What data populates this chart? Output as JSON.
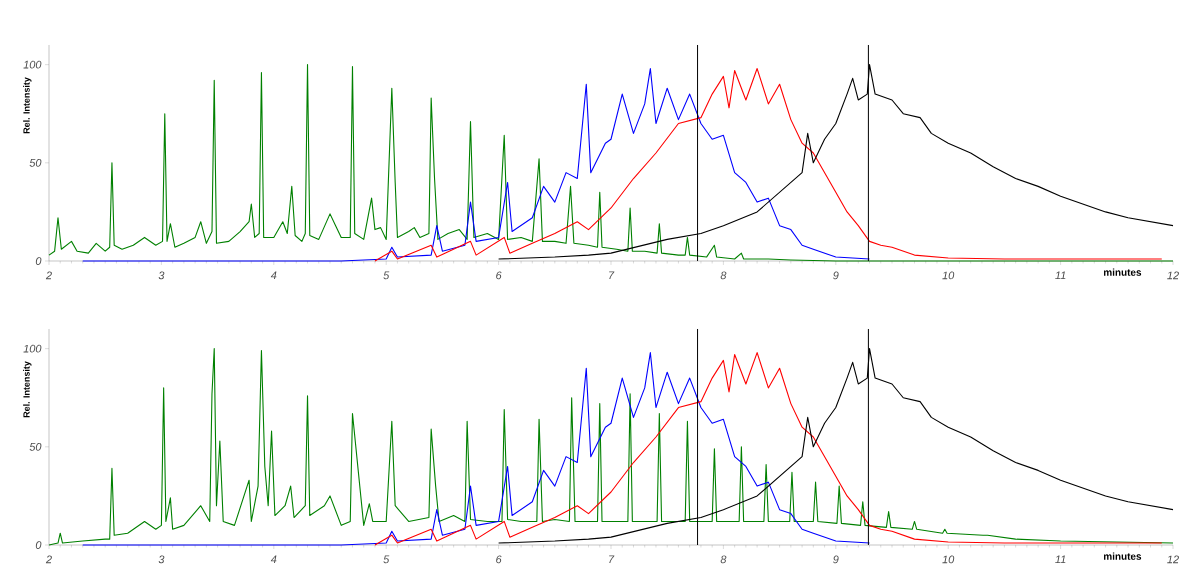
{
  "chart_data": [
    {
      "type": "line",
      "xlabel": "minutes",
      "ylabel": "Rel. Intensity",
      "xlim": [
        2,
        12
      ],
      "ylim": [
        0,
        110
      ],
      "xticks": [
        2,
        3,
        4,
        5,
        6,
        7,
        8,
        9,
        10,
        11,
        12
      ],
      "yticks": [
        0,
        50,
        100
      ],
      "ref_lines": [
        {
          "axis": "x",
          "value": 7.77,
          "color": "#000000"
        },
        {
          "axis": "x",
          "value": 9.29,
          "color": "#000000"
        }
      ],
      "series": [
        {
          "color": "#008000",
          "x": [
            2.0,
            2.05,
            2.08,
            2.11,
            2.2,
            2.25,
            2.35,
            2.42,
            2.5,
            2.54,
            2.56,
            2.58,
            2.65,
            2.75,
            2.85,
            2.95,
            3.01,
            3.03,
            3.05,
            3.08,
            3.12,
            3.2,
            3.3,
            3.35,
            3.4,
            3.45,
            3.47,
            3.49,
            3.6,
            3.7,
            3.78,
            3.8,
            3.83,
            3.87,
            3.89,
            3.91,
            4.0,
            4.08,
            4.12,
            4.16,
            4.19,
            4.25,
            4.28,
            4.3,
            4.32,
            4.4,
            4.5,
            4.55,
            4.6,
            4.68,
            4.7,
            4.72,
            4.8,
            4.87,
            4.9,
            4.95,
            5.0,
            5.05,
            5.08,
            5.1,
            5.2,
            5.25,
            5.3,
            5.38,
            5.4,
            5.43,
            5.46,
            5.55,
            5.65,
            5.72,
            5.75,
            5.78,
            5.9,
            6.0,
            6.05,
            6.08,
            6.2,
            6.3,
            6.36,
            6.39,
            6.5,
            6.6,
            6.64,
            6.67,
            6.8,
            6.88,
            6.9,
            6.92,
            7.05,
            7.15,
            7.17,
            7.19,
            7.3,
            7.41,
            7.43,
            7.45,
            7.6,
            7.66,
            7.68,
            7.7,
            7.85,
            7.92,
            7.94,
            8.1,
            8.16,
            8.18,
            8.4,
            8.6,
            9.0,
            10.0,
            12.0
          ],
          "values": [
            3,
            5,
            22,
            6,
            10,
            5,
            4,
            9,
            5,
            7,
            50,
            8,
            6,
            8,
            12,
            8,
            10,
            75,
            10,
            19,
            7,
            9,
            12,
            20,
            9,
            15,
            92,
            9,
            10,
            15,
            20,
            29,
            12,
            14,
            96,
            12,
            12,
            20,
            14,
            38,
            13,
            10,
            14,
            100,
            13,
            11,
            24,
            18,
            12,
            12,
            99,
            14,
            11,
            32,
            16,
            17,
            11,
            88,
            40,
            12,
            15,
            17,
            12,
            14,
            83,
            42,
            11,
            14,
            16,
            11,
            71,
            12,
            14,
            11,
            64,
            11,
            12,
            10,
            52,
            10,
            10,
            9,
            38,
            9,
            8,
            7,
            35,
            7,
            6,
            5,
            27,
            5,
            5,
            4,
            19,
            4,
            3,
            3,
            12,
            3,
            2,
            8,
            2,
            1,
            4,
            1,
            1,
            0.5,
            0,
            0,
            0
          ]
        },
        {
          "color": "#0000ff",
          "x": [
            2.3,
            4.6,
            5.0,
            5.05,
            5.1,
            5.4,
            5.45,
            5.5,
            5.7,
            5.75,
            5.8,
            6.0,
            6.08,
            6.12,
            6.3,
            6.4,
            6.5,
            6.6,
            6.7,
            6.78,
            6.82,
            6.95,
            7.0,
            7.1,
            7.2,
            7.3,
            7.35,
            7.4,
            7.5,
            7.6,
            7.7,
            7.8,
            7.9,
            8.0,
            8.1,
            8.2,
            8.3,
            8.4,
            8.5,
            8.6,
            8.7,
            8.8,
            9.0,
            9.3
          ],
          "values": [
            0,
            0,
            1,
            7,
            2,
            3,
            18,
            5,
            8,
            30,
            10,
            12,
            40,
            15,
            22,
            38,
            30,
            45,
            42,
            90,
            45,
            60,
            62,
            85,
            65,
            80,
            98,
            70,
            88,
            72,
            85,
            70,
            62,
            64,
            45,
            40,
            30,
            32,
            18,
            16,
            8,
            6,
            2,
            1
          ]
        },
        {
          "color": "#ff0000",
          "x": [
            4.9,
            5.05,
            5.1,
            5.4,
            5.45,
            5.75,
            5.8,
            6.05,
            6.1,
            6.3,
            6.5,
            6.7,
            6.8,
            7.0,
            7.2,
            7.4,
            7.6,
            7.8,
            7.9,
            8.0,
            8.05,
            8.1,
            8.2,
            8.3,
            8.4,
            8.5,
            8.6,
            8.7,
            8.8,
            8.9,
            9.0,
            9.1,
            9.2,
            9.3,
            9.4,
            9.5,
            9.7,
            10.0,
            10.5,
            11.9
          ],
          "values": [
            0,
            5,
            1,
            8,
            2,
            10,
            3,
            12,
            4,
            9,
            14,
            20,
            16,
            27,
            42,
            55,
            70,
            73,
            85,
            94,
            78,
            97,
            82,
            98,
            80,
            90,
            72,
            60,
            55,
            45,
            35,
            25,
            18,
            10,
            8,
            7,
            3,
            1.5,
            1,
            1
          ]
        },
        {
          "color": "#000000",
          "x": [
            6.0,
            6.5,
            6.8,
            7.0,
            7.5,
            7.8,
            8.0,
            8.3,
            8.5,
            8.7,
            8.75,
            8.8,
            8.9,
            9.0,
            9.1,
            9.15,
            9.2,
            9.28,
            9.3,
            9.35,
            9.5,
            9.6,
            9.75,
            9.85,
            10.0,
            10.2,
            10.4,
            10.6,
            10.8,
            11.0,
            11.2,
            11.4,
            11.6,
            11.8,
            12.0
          ],
          "values": [
            1,
            2,
            3,
            4,
            11,
            14,
            18,
            25,
            35,
            45,
            65,
            50,
            62,
            70,
            85,
            93,
            82,
            85,
            100,
            85,
            82,
            75,
            73,
            65,
            60,
            55,
            48,
            42,
            38,
            33,
            29,
            25,
            22,
            20,
            18
          ]
        }
      ]
    },
    {
      "type": "line",
      "xlabel": "minutes",
      "ylabel": "Rel. Intensity",
      "xlim": [
        2,
        12
      ],
      "ylim": [
        0,
        110
      ],
      "xticks": [
        2,
        3,
        4,
        5,
        6,
        7,
        8,
        9,
        10,
        11,
        12
      ],
      "yticks": [
        0,
        50,
        100
      ],
      "ref_lines": [
        {
          "axis": "x",
          "value": 7.77,
          "color": "#000000"
        },
        {
          "axis": "x",
          "value": 9.29,
          "color": "#000000"
        }
      ],
      "series": [
        {
          "color": "#008000",
          "x": [
            2.0,
            2.08,
            2.1,
            2.12,
            2.3,
            2.5,
            2.54,
            2.56,
            2.58,
            2.7,
            2.85,
            2.95,
            3.0,
            3.02,
            3.04,
            3.08,
            3.1,
            3.2,
            3.35,
            3.43,
            3.45,
            3.47,
            3.49,
            3.52,
            3.55,
            3.65,
            3.78,
            3.8,
            3.86,
            3.89,
            3.92,
            3.95,
            3.98,
            4.01,
            4.1,
            4.15,
            4.18,
            4.28,
            4.3,
            4.32,
            4.45,
            4.5,
            4.6,
            4.68,
            4.7,
            4.8,
            4.85,
            4.88,
            5.0,
            5.05,
            5.08,
            5.2,
            5.38,
            5.4,
            5.44,
            5.47,
            5.6,
            5.7,
            5.72,
            5.75,
            5.9,
            6.03,
            6.05,
            6.08,
            6.2,
            6.34,
            6.36,
            6.39,
            6.5,
            6.63,
            6.65,
            6.68,
            6.88,
            6.9,
            6.92,
            7.15,
            7.17,
            7.19,
            7.41,
            7.43,
            7.45,
            7.66,
            7.68,
            7.7,
            7.9,
            7.92,
            7.94,
            8.14,
            8.16,
            8.18,
            8.36,
            8.38,
            8.4,
            8.59,
            8.61,
            8.63,
            8.8,
            8.82,
            8.84,
            9.01,
            9.03,
            9.05,
            9.22,
            9.24,
            9.26,
            9.45,
            9.47,
            9.49,
            9.68,
            9.7,
            9.72,
            9.95,
            9.97,
            9.99,
            10.31,
            10.33,
            10.35,
            10.6,
            11.0,
            11.5,
            12.0
          ],
          "values": [
            0,
            1,
            6,
            1,
            2,
            3,
            3,
            39,
            5,
            6,
            12,
            8,
            10,
            80,
            12,
            24,
            8,
            10,
            20,
            12,
            77,
            100,
            20,
            53,
            12,
            10,
            33,
            12,
            30,
            99,
            40,
            20,
            58,
            15,
            20,
            30,
            14,
            20,
            76,
            15,
            20,
            25,
            10,
            12,
            67,
            10,
            21,
            12,
            12,
            63,
            20,
            12,
            14,
            59,
            30,
            12,
            15,
            12,
            63,
            13,
            12,
            12,
            69,
            13,
            12,
            12,
            64,
            12,
            13,
            12,
            75,
            12,
            12,
            72,
            12,
            12,
            77,
            12,
            12,
            67,
            12,
            12,
            63,
            12,
            12,
            49,
            12,
            12,
            50,
            12,
            12,
            41,
            12,
            12,
            37,
            12,
            12,
            32,
            12,
            11,
            30,
            11,
            10,
            22,
            10,
            9,
            17,
            9,
            8,
            12,
            8,
            6,
            8,
            6,
            5,
            5,
            5,
            3,
            2,
            1.5,
            1
          ]
        },
        {
          "color": "#0000ff",
          "x": [
            2.3,
            4.6,
            5.0,
            5.05,
            5.1,
            5.4,
            5.45,
            5.5,
            5.7,
            5.75,
            5.8,
            6.0,
            6.08,
            6.12,
            6.3,
            6.4,
            6.5,
            6.6,
            6.7,
            6.78,
            6.82,
            6.95,
            7.0,
            7.1,
            7.2,
            7.3,
            7.35,
            7.4,
            7.5,
            7.6,
            7.7,
            7.8,
            7.9,
            8.0,
            8.1,
            8.2,
            8.3,
            8.4,
            8.5,
            8.6,
            8.7,
            8.8,
            9.0,
            9.3
          ],
          "values": [
            0,
            0,
            1,
            7,
            2,
            3,
            18,
            5,
            8,
            30,
            10,
            12,
            40,
            15,
            22,
            38,
            30,
            45,
            42,
            90,
            45,
            60,
            62,
            85,
            65,
            80,
            98,
            70,
            88,
            72,
            85,
            70,
            62,
            64,
            45,
            40,
            30,
            32,
            18,
            16,
            8,
            6,
            2,
            1
          ]
        },
        {
          "color": "#ff0000",
          "x": [
            4.9,
            5.05,
            5.1,
            5.4,
            5.45,
            5.75,
            5.8,
            6.05,
            6.1,
            6.3,
            6.5,
            6.7,
            6.8,
            7.0,
            7.2,
            7.4,
            7.6,
            7.8,
            7.9,
            8.0,
            8.05,
            8.1,
            8.2,
            8.3,
            8.4,
            8.5,
            8.6,
            8.7,
            8.8,
            8.9,
            9.0,
            9.1,
            9.2,
            9.3,
            9.4,
            9.5,
            9.7,
            10.0,
            10.5,
            11.9
          ],
          "values": [
            0,
            5,
            1,
            8,
            2,
            10,
            3,
            12,
            4,
            9,
            14,
            20,
            16,
            27,
            42,
            55,
            70,
            73,
            85,
            94,
            78,
            97,
            82,
            98,
            80,
            90,
            72,
            60,
            55,
            45,
            35,
            25,
            18,
            10,
            8,
            7,
            3,
            1.5,
            1,
            1
          ]
        },
        {
          "color": "#000000",
          "x": [
            6.0,
            6.5,
            6.8,
            7.0,
            7.5,
            7.8,
            8.0,
            8.3,
            8.5,
            8.7,
            8.75,
            8.8,
            8.9,
            9.0,
            9.1,
            9.15,
            9.2,
            9.28,
            9.3,
            9.35,
            9.5,
            9.6,
            9.75,
            9.85,
            10.0,
            10.2,
            10.4,
            10.6,
            10.8,
            11.0,
            11.2,
            11.4,
            11.6,
            11.8,
            12.0
          ],
          "values": [
            1,
            2,
            3,
            4,
            11,
            14,
            18,
            25,
            35,
            45,
            65,
            50,
            62,
            70,
            85,
            93,
            82,
            85,
            100,
            85,
            82,
            75,
            73,
            65,
            60,
            55,
            48,
            42,
            38,
            33,
            29,
            25,
            22,
            20,
            18
          ]
        }
      ]
    }
  ]
}
